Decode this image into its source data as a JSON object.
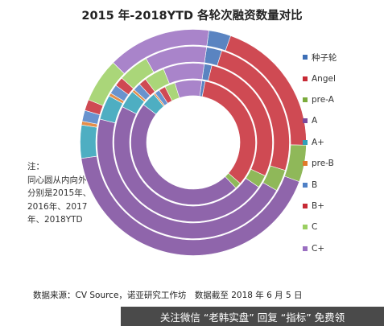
{
  "chart_data": {
    "type": "donut",
    "title": "2015 年-2018YTD 各轮次融资数量对比",
    "ring_order_note": "注：\n同心圆从内向外\n分别是2015年、\n2016年、2017\n年、2018YTD",
    "categories": [
      "种子轮",
      "Angel",
      "pre-A",
      "A",
      "A+",
      "pre-B",
      "B",
      "B+",
      "C",
      "C+"
    ],
    "colors": [
      "#3d6fb6",
      "#c72a35",
      "#7bab3c",
      "#7b4a9c",
      "#2fa0b7",
      "#e07a2a",
      "#4f80c6",
      "#c72a35",
      "#9bcf62",
      "#9a6fc1"
    ],
    "series": [
      {
        "name": "2015年",
        "values": [
          0.8,
          31,
          1.5,
          44,
          3.5,
          0.4,
          1.2,
          1.6,
          2.5,
          6.5
        ]
      },
      {
        "name": "2016年",
        "values": [
          1.5,
          27,
          2.5,
          46,
          3.5,
          0.5,
          1.5,
          1.5,
          4,
          8
        ]
      },
      {
        "name": "2017年",
        "values": [
          2.5,
          24,
          3.5,
          44,
          4,
          0.5,
          1.5,
          1.5,
          5,
          10
        ]
      },
      {
        "name": "2018YTD",
        "values": [
          3,
          19,
          5,
          40,
          4.5,
          0.5,
          1.5,
          1.5,
          6,
          14
        ]
      }
    ]
  },
  "source_text": "数据来源：CV Source，诺亚研究工作坊　数据截至 2018 年 6 月 5 日",
  "watermark_text": "关注微信 “老韩实盘” 回复 “指标” 免费领"
}
